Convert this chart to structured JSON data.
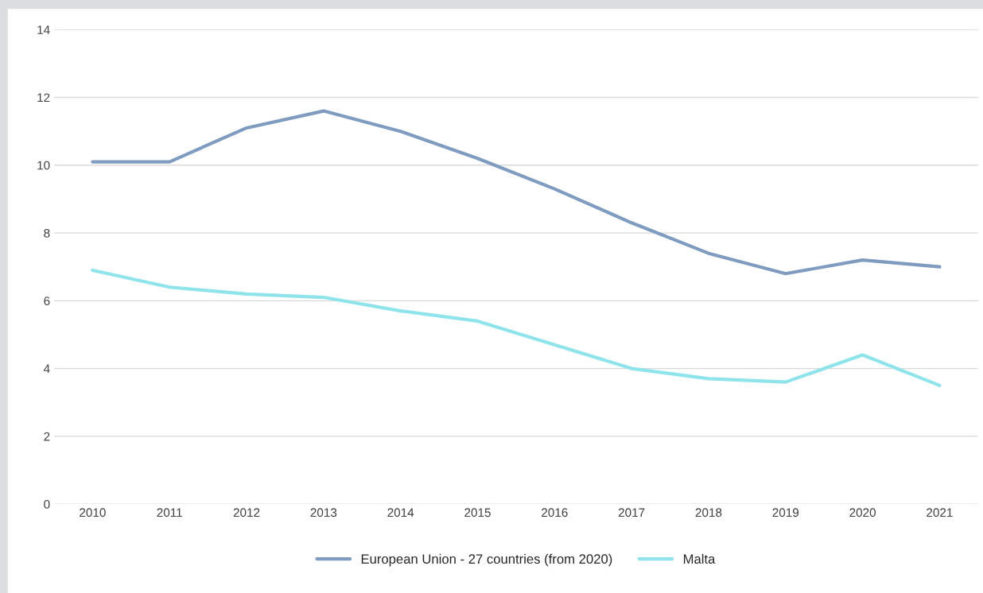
{
  "chart_data": {
    "type": "line",
    "categories": [
      "2010",
      "2011",
      "2012",
      "2013",
      "2014",
      "2015",
      "2016",
      "2017",
      "2018",
      "2019",
      "2020",
      "2021"
    ],
    "series": [
      {
        "name": "European Union - 27 countries (from 2020)",
        "color": "#7f9cc0",
        "values": [
          10.1,
          10.1,
          11.1,
          11.6,
          11.0,
          10.2,
          9.3,
          8.3,
          7.4,
          6.8,
          7.2,
          7.0
        ]
      },
      {
        "name": "Malta",
        "color": "#8ee4ea",
        "values": [
          6.9,
          6.4,
          6.2,
          6.1,
          5.7,
          5.4,
          4.7,
          4.0,
          3.7,
          3.6,
          4.4,
          3.5
        ]
      }
    ],
    "ylim": [
      0,
      14
    ],
    "yticks": [
      0,
      2,
      4,
      6,
      8,
      10,
      12,
      14
    ],
    "grid": "y",
    "legend": "bottom",
    "marker": "none",
    "line_style": "solid"
  }
}
